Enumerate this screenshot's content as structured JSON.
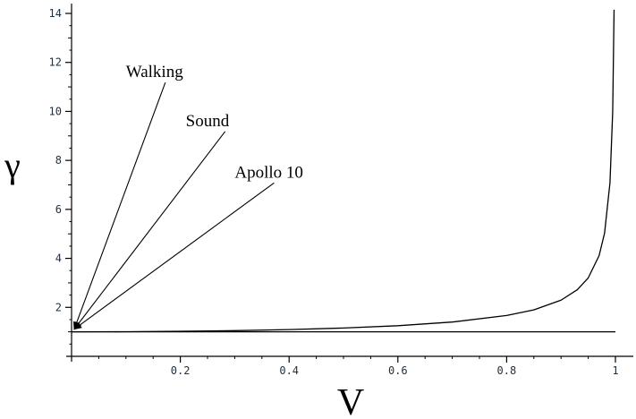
{
  "chart_data": {
    "type": "line",
    "xlabel": "V",
    "ylabel": "γ",
    "xlim": [
      0,
      1
    ],
    "ylim": [
      0,
      14
    ],
    "x_ticks": [
      0.2,
      0.4,
      0.6,
      0.8,
      1
    ],
    "x_tick_labels": [
      "0.2",
      "0.4",
      "0.6",
      "0.8",
      "1"
    ],
    "y_ticks": [
      2,
      4,
      6,
      8,
      10,
      12,
      14
    ],
    "y_tick_labels": [
      "2",
      "4",
      "6",
      "8",
      "10",
      "12",
      "14"
    ],
    "series": [
      {
        "x": [
          0,
          0.1,
          0.2,
          0.3,
          0.4,
          0.5,
          0.6,
          0.7,
          0.8,
          0.85,
          0.9,
          0.93,
          0.95,
          0.97,
          0.98,
          0.99,
          0.995,
          0.9975
        ],
        "values": [
          1.0,
          1.005,
          1.021,
          1.048,
          1.091,
          1.155,
          1.25,
          1.4,
          1.667,
          1.898,
          2.294,
          2.72,
          3.203,
          4.113,
          5.025,
          7.089,
          10.01,
          14.15
        ],
        "color": "#000000"
      },
      {
        "x": [
          0,
          1
        ],
        "values": [
          1,
          1
        ],
        "color": "#000000"
      }
    ],
    "annotations": [
      {
        "text": "Walking",
        "label_x": 0.1,
        "label_y": 11.4,
        "arrow_to": [
          0,
          1
        ]
      },
      {
        "text": "Sound",
        "label_x": 0.21,
        "label_y": 9.4,
        "arrow_to": [
          0,
          1
        ]
      },
      {
        "text": "Apollo 10",
        "label_x": 0.3,
        "label_y": 7.3,
        "arrow_to": [
          0,
          1
        ]
      }
    ],
    "grid": false,
    "legend": "none"
  }
}
